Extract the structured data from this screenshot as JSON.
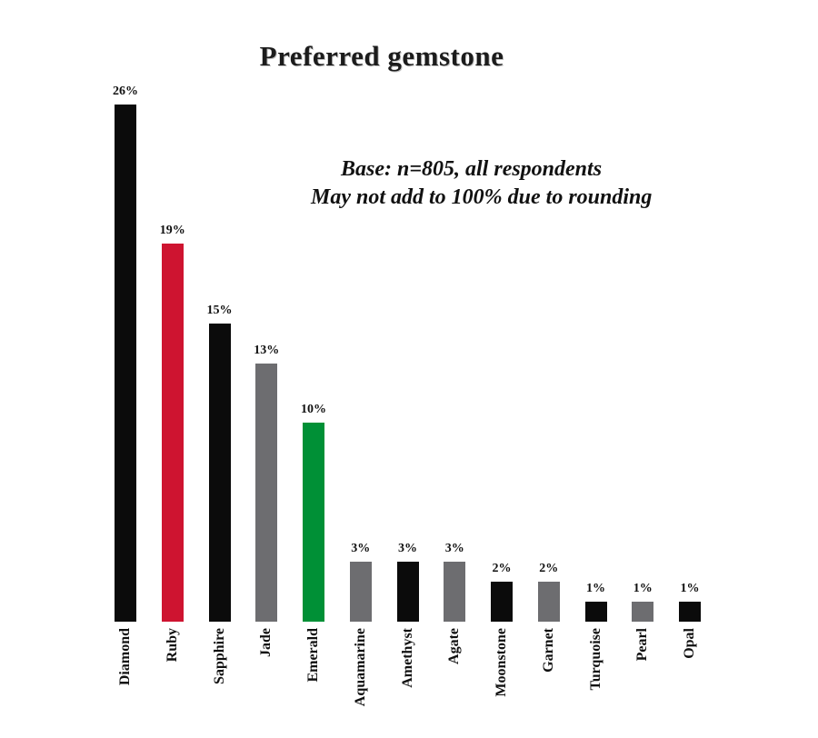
{
  "chart_data": {
    "type": "bar",
    "title": "Preferred gemstone",
    "annotation": [
      "Base: n=805, all respondents",
      "May not add to 100% due to rounding"
    ],
    "categories": [
      "Diamond",
      "Ruby",
      "Sapphire",
      "Jade",
      "Emerald",
      "Aquamarine",
      "Amethyst",
      "Agate",
      "Moonstone",
      "Garnet",
      "Turquoise",
      "Pearl",
      "Opal"
    ],
    "values": [
      26,
      19,
      15,
      13,
      10,
      3,
      3,
      3,
      2,
      2,
      1,
      1,
      1
    ],
    "value_labels": [
      "26%",
      "19%",
      "15%",
      "13%",
      "10%",
      "3%",
      "3%",
      "3%",
      "2%",
      "2%",
      "1%",
      "1%",
      "1%"
    ],
    "bar_colors": [
      "#0b0b0b",
      "#ce1430",
      "#0b0b0b",
      "#6d6d70",
      "#009036",
      "#6d6d70",
      "#0b0b0b",
      "#6d6d70",
      "#0b0b0b",
      "#6d6d70",
      "#0b0b0b",
      "#6d6d70",
      "#0b0b0b"
    ],
    "xlabel": "",
    "ylabel": "",
    "ylim": [
      0,
      28
    ],
    "grid": false,
    "legend": false,
    "axis_lines": false,
    "category_label_orientation": "vertical-bottom-to-top",
    "colors": {
      "black_bar": "#0b0b0b",
      "red_bar": "#ce1430",
      "gray_bar": "#6d6d70",
      "green_bar": "#009036",
      "text": "#101010",
      "background": "#ffffff"
    }
  }
}
